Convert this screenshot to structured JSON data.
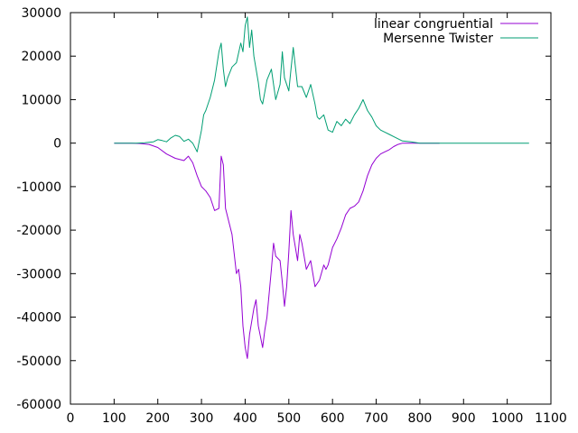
{
  "chart_data": {
    "type": "line",
    "title": "",
    "xlabel": "",
    "ylabel": "",
    "xlim": [
      0,
      1100
    ],
    "ylim": [
      -60000,
      30000
    ],
    "grid": false,
    "legend_position": "top-right",
    "x_ticks": [
      {
        "value": 0,
        "label": "0"
      },
      {
        "value": 100,
        "label": "100"
      },
      {
        "value": 200,
        "label": "200"
      },
      {
        "value": 300,
        "label": "300"
      },
      {
        "value": 400,
        "label": "400"
      },
      {
        "value": 500,
        "label": "500"
      },
      {
        "value": 600,
        "label": "600"
      },
      {
        "value": 700,
        "label": "700"
      },
      {
        "value": 800,
        "label": "800"
      },
      {
        "value": 900,
        "label": "900"
      },
      {
        "value": 1000,
        "label": "1000"
      },
      {
        "value": 1100,
        "label": "1100"
      }
    ],
    "y_ticks": [
      {
        "value": 30000,
        "label": "30000"
      },
      {
        "value": 20000,
        "label": "20000"
      },
      {
        "value": 10000,
        "label": "10000"
      },
      {
        "value": 0,
        "label": "0"
      },
      {
        "value": -10000,
        "label": "-10000"
      },
      {
        "value": -20000,
        "label": "-20000"
      },
      {
        "value": -30000,
        "label": "-30000"
      },
      {
        "value": -40000,
        "label": "-40000"
      },
      {
        "value": -50000,
        "label": "-50000"
      },
      {
        "value": -60000,
        "label": "-60000"
      }
    ],
    "series": [
      {
        "name": "linear congruential",
        "color": "#9400d3",
        "x": [
          100,
          140,
          160,
          180,
          200,
          220,
          240,
          260,
          270,
          280,
          290,
          300,
          310,
          320,
          330,
          340,
          345,
          350,
          355,
          360,
          370,
          380,
          385,
          390,
          395,
          400,
          405,
          410,
          420,
          425,
          430,
          440,
          445,
          450,
          460,
          465,
          470,
          480,
          485,
          490,
          495,
          500,
          505,
          510,
          520,
          525,
          530,
          540,
          550,
          555,
          560,
          570,
          580,
          585,
          590,
          600,
          610,
          620,
          630,
          640,
          650,
          660,
          670,
          680,
          690,
          700,
          710,
          720,
          730,
          740,
          750,
          760,
          780,
          800,
          820,
          840,
          845
        ],
        "y": [
          0,
          0,
          -100,
          -300,
          -1000,
          -2500,
          -3500,
          -4000,
          -3000,
          -4500,
          -7500,
          -10000,
          -11000,
          -12500,
          -15500,
          -15000,
          -3000,
          -5000,
          -15000,
          -17000,
          -21000,
          -30000,
          -29000,
          -33000,
          -42000,
          -47000,
          -49500,
          -44000,
          -38000,
          -36000,
          -42000,
          -47000,
          -43000,
          -40000,
          -29000,
          -23000,
          -26000,
          -27000,
          -32000,
          -37500,
          -33000,
          -25000,
          -15500,
          -21000,
          -27000,
          -21000,
          -23000,
          -29000,
          -27000,
          -30000,
          -33000,
          -31500,
          -28000,
          -29000,
          -28000,
          -24000,
          -22000,
          -19500,
          -16500,
          -15000,
          -14500,
          -13500,
          -11000,
          -7500,
          -5000,
          -3500,
          -2500,
          -2000,
          -1500,
          -800,
          -300,
          0,
          0,
          0,
          0,
          0,
          0
        ]
      },
      {
        "name": "Mersenne Twister",
        "color": "#009e73",
        "x": [
          100,
          150,
          170,
          190,
          200,
          210,
          220,
          230,
          240,
          250,
          260,
          270,
          280,
          290,
          300,
          305,
          310,
          320,
          330,
          340,
          345,
          350,
          355,
          360,
          370,
          380,
          390,
          395,
          400,
          405,
          410,
          415,
          420,
          430,
          435,
          440,
          450,
          460,
          470,
          480,
          485,
          490,
          500,
          505,
          510,
          520,
          530,
          540,
          550,
          560,
          565,
          570,
          580,
          590,
          600,
          610,
          620,
          630,
          640,
          650,
          660,
          670,
          680,
          690,
          700,
          710,
          720,
          730,
          740,
          760,
          780,
          800,
          820,
          840,
          900,
          1000,
          1050
        ],
        "y": [
          0,
          0,
          100,
          300,
          800,
          600,
          300,
          1200,
          1800,
          1500,
          400,
          900,
          0,
          -2000,
          3000,
          6500,
          7500,
          10500,
          14500,
          21000,
          23000,
          17000,
          13000,
          15000,
          17500,
          18500,
          23000,
          21000,
          27000,
          29000,
          22000,
          26000,
          20000,
          14000,
          10000,
          9000,
          14500,
          17000,
          10000,
          13500,
          21000,
          15000,
          12000,
          17000,
          22000,
          13000,
          13000,
          10500,
          13500,
          9000,
          6000,
          5500,
          6500,
          3000,
          2500,
          5000,
          4000,
          5500,
          4500,
          6500,
          8000,
          10000,
          7500,
          6000,
          4000,
          3000,
          2500,
          2000,
          1500,
          500,
          300,
          0,
          0,
          0,
          0,
          0,
          0
        ]
      }
    ]
  }
}
